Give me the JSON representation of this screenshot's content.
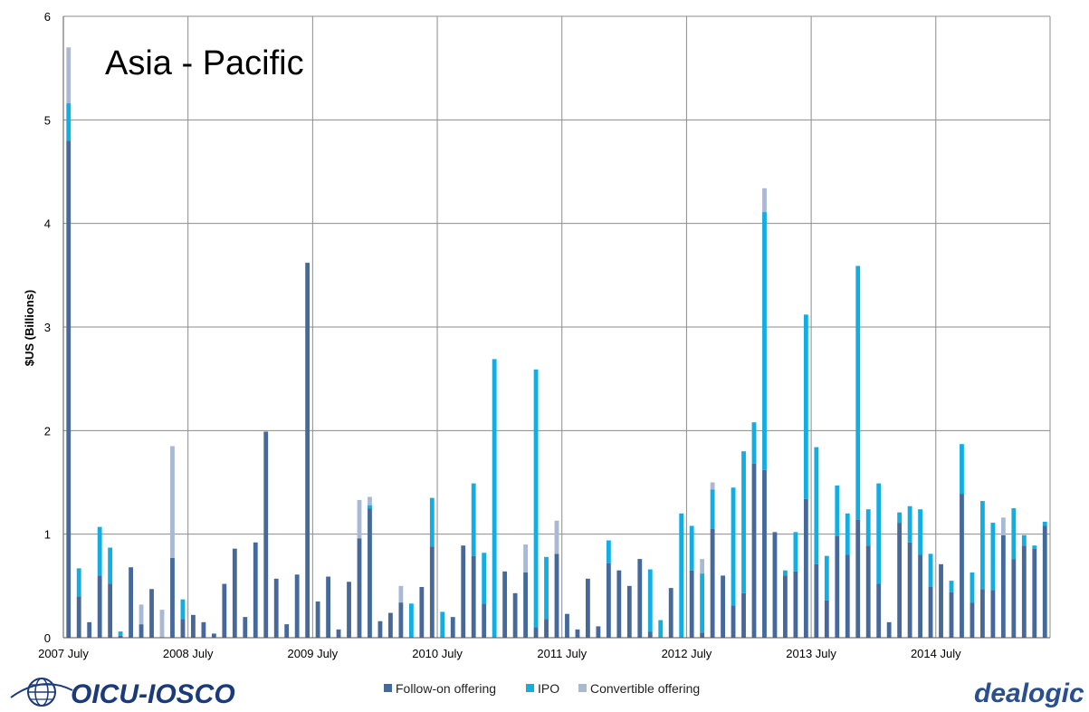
{
  "colors": {
    "follow_on": "#44699a",
    "ipo": "#12ade2",
    "convertible": "#a9b8d3",
    "grid": "#8c8c8c"
  },
  "logos": {
    "left": "OICU-IOSCO",
    "right": "dealogic"
  },
  "chart_data": {
    "type": "bar",
    "stacked": true,
    "title": "Asia - Pacific",
    "ylabel": "$US (Billions)",
    "ylim": [
      0,
      6
    ],
    "yticks": [
      "0",
      "1",
      "2",
      "3",
      "4",
      "5",
      "6"
    ],
    "xtick_labels": [
      "2007 July",
      "2008 July",
      "2009 July",
      "2010 July",
      "2011 July",
      "2012 July",
      "2013 July",
      "2014 July"
    ],
    "x_start": "2007-07",
    "grid": true,
    "legend_position": "bottom",
    "series": [
      {
        "name": "Follow-on offering",
        "values": [
          4.8,
          0.4,
          0.15,
          0.6,
          0.52,
          0.02,
          0.68,
          0.13,
          0.47,
          0.0,
          0.77,
          0.18,
          0.22,
          0.15,
          0.04,
          0.52,
          0.86,
          0.2,
          0.92,
          1.99,
          0.57,
          0.13,
          0.61,
          3.62,
          0.35,
          0.59,
          0.08,
          0.54,
          0.96,
          1.25,
          0.16,
          0.24,
          0.34,
          0.0,
          0.49,
          0.88,
          0.0,
          0.2,
          0.89,
          0.79,
          0.33,
          0.0,
          0.64,
          0.43,
          0.63,
          0.1,
          0.18,
          0.81,
          0.23,
          0.08,
          0.57,
          0.11,
          0.72,
          0.65,
          0.5,
          0.76,
          0.06,
          0.0,
          0.48,
          0.0,
          0.65,
          0.05,
          1.05,
          0.6,
          0.31,
          0.43,
          1.68,
          1.62,
          1.02,
          0.6,
          0.64,
          1.34,
          0.71,
          0.36,
          0.98,
          0.8,
          1.14,
          0.89,
          0.52,
          0.15,
          1.11,
          0.92,
          0.8,
          0.49,
          0.71,
          0.44,
          1.39,
          0.34,
          0.47,
          0.46,
          0.99,
          0.76,
          0.89,
          0.86,
          1.08
        ]
      },
      {
        "name": "IPO",
        "values": [
          0.36,
          0.27,
          0.0,
          0.47,
          0.35,
          0.04,
          0.0,
          0.0,
          0.0,
          0.0,
          0.0,
          0.19,
          0.0,
          0.0,
          0.0,
          0.0,
          0.0,
          0.0,
          0.0,
          0.0,
          0.0,
          0.0,
          0.0,
          0.0,
          0.0,
          0.0,
          0.0,
          0.0,
          0.0,
          0.03,
          0.0,
          0.0,
          0.0,
          0.33,
          0.0,
          0.47,
          0.25,
          0.0,
          0.0,
          0.7,
          0.49,
          2.69,
          0.0,
          0.0,
          0.0,
          2.49,
          0.6,
          0.0,
          0.0,
          0.0,
          0.0,
          0.0,
          0.22,
          0.0,
          0.0,
          0.0,
          0.6,
          0.17,
          0.0,
          1.2,
          0.43,
          0.57,
          0.38,
          0.0,
          1.14,
          1.37,
          0.4,
          2.49,
          0.0,
          0.05,
          0.38,
          1.78,
          1.13,
          0.43,
          0.49,
          0.4,
          2.45,
          0.35,
          0.97,
          0.0,
          0.1,
          0.35,
          0.44,
          0.32,
          0.0,
          0.11,
          0.48,
          0.29,
          0.85,
          0.65,
          0.0,
          0.49,
          0.1,
          0.03,
          0.04
        ]
      },
      {
        "name": "Convertible offering",
        "values": [
          0.54,
          0.0,
          0.0,
          0.0,
          0.0,
          0.0,
          0.0,
          0.19,
          0.0,
          0.27,
          1.08,
          0.0,
          0.0,
          0.0,
          0.0,
          0.0,
          0.0,
          0.0,
          0.0,
          0.0,
          0.0,
          0.0,
          0.0,
          0.0,
          0.0,
          0.0,
          0.0,
          0.0,
          0.37,
          0.08,
          0.0,
          0.0,
          0.16,
          0.0,
          0.0,
          0.0,
          0.0,
          0.0,
          0.0,
          0.0,
          0.0,
          0.0,
          0.0,
          0.0,
          0.27,
          0.0,
          0.0,
          0.32,
          0.0,
          0.0,
          0.0,
          0.0,
          0.0,
          0.0,
          0.0,
          0.0,
          0.0,
          0.0,
          0.0,
          0.0,
          0.0,
          0.14,
          0.07,
          0.0,
          0.0,
          0.0,
          0.0,
          0.23,
          0.0,
          0.0,
          0.0,
          0.0,
          0.0,
          0.0,
          0.0,
          0.0,
          0.0,
          0.0,
          0.0,
          0.0,
          0.0,
          0.0,
          0.0,
          0.0,
          0.0,
          0.0,
          0.0,
          0.0,
          0.0,
          0.0,
          0.17,
          0.0,
          0.0,
          0.0,
          0.0
        ]
      }
    ]
  }
}
